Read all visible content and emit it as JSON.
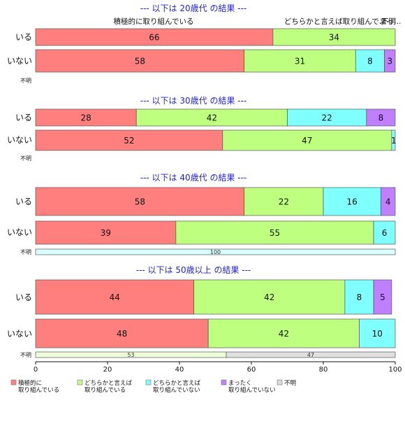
{
  "chart_data": {
    "type": "bar",
    "orientation": "horizontal",
    "stacked": true,
    "xlim": [
      0,
      100
    ],
    "xticks": [
      0,
      20,
      40,
      60,
      80,
      100
    ],
    "top_labels": [
      "積極的に取り組んでいる",
      "どちらかと言えば取り組んで…",
      "まっ…",
      "不明"
    ],
    "colors": {
      "積極的に取り組んでいる": "#ff7f7f",
      "どちらかと言えば取り組んでいる": "#bfff7f",
      "どちらかと言えば取り組んでいない": "#80ffff",
      "まったく取り組んでいない": "#bf7fff",
      "不明": "#d9d9d9"
    },
    "legend": [
      {
        "key": "積極的に取り組んでいる",
        "lines": [
          "積極的に",
          "取り組んでいる"
        ]
      },
      {
        "key": "どちらかと言えば取り組んでいる",
        "lines": [
          "どちらかと言えば",
          "取り組んでいる"
        ]
      },
      {
        "key": "どちらかと言えば取り組んでいない",
        "lines": [
          "どちらかと言えば",
          "取り組んでいない"
        ]
      },
      {
        "key": "まったく取り組んでいない",
        "lines": [
          "まったく",
          "取り組んでいない"
        ]
      },
      {
        "key": "不明",
        "lines": [
          "不明"
        ]
      }
    ],
    "panels": [
      {
        "title": "--- 以下は 20歳代 の結果 ---",
        "rows": [
          {
            "label": "いる",
            "values": [
              66,
              34,
              0,
              0,
              0
            ]
          },
          {
            "label": "いない",
            "values": [
              58,
              31,
              8,
              3,
              0
            ]
          },
          {
            "label": "不明",
            "values": [
              0,
              0,
              0,
              0,
              0
            ]
          }
        ]
      },
      {
        "title": "--- 以下は 30歳代 の結果 ---",
        "rows": [
          {
            "label": "いる",
            "values": [
              28,
              42,
              22,
              8,
              0
            ]
          },
          {
            "label": "いない",
            "values": [
              52,
              47,
              1,
              0,
              0
            ]
          },
          {
            "label": "不明",
            "values": [
              0,
              0,
              0,
              0,
              0
            ]
          }
        ]
      },
      {
        "title": "--- 以下は 40歳代 の結果 ---",
        "rows": [
          {
            "label": "いる",
            "values": [
              58,
              22,
              16,
              4,
              0
            ]
          },
          {
            "label": "いない",
            "values": [
              39,
              55,
              6,
              0,
              0
            ]
          },
          {
            "label": "不明",
            "values": [
              0,
              0,
              100,
              0,
              0
            ]
          }
        ]
      },
      {
        "title": "--- 以下は 50歳以上 の結果 ---",
        "rows": [
          {
            "label": "いる",
            "values": [
              44,
              42,
              8,
              5,
              0
            ]
          },
          {
            "label": "いない",
            "values": [
              48,
              42,
              10,
              0,
              0
            ]
          },
          {
            "label": "不明",
            "values": [
              0,
              53,
              0,
              0,
              47
            ]
          }
        ]
      }
    ]
  }
}
